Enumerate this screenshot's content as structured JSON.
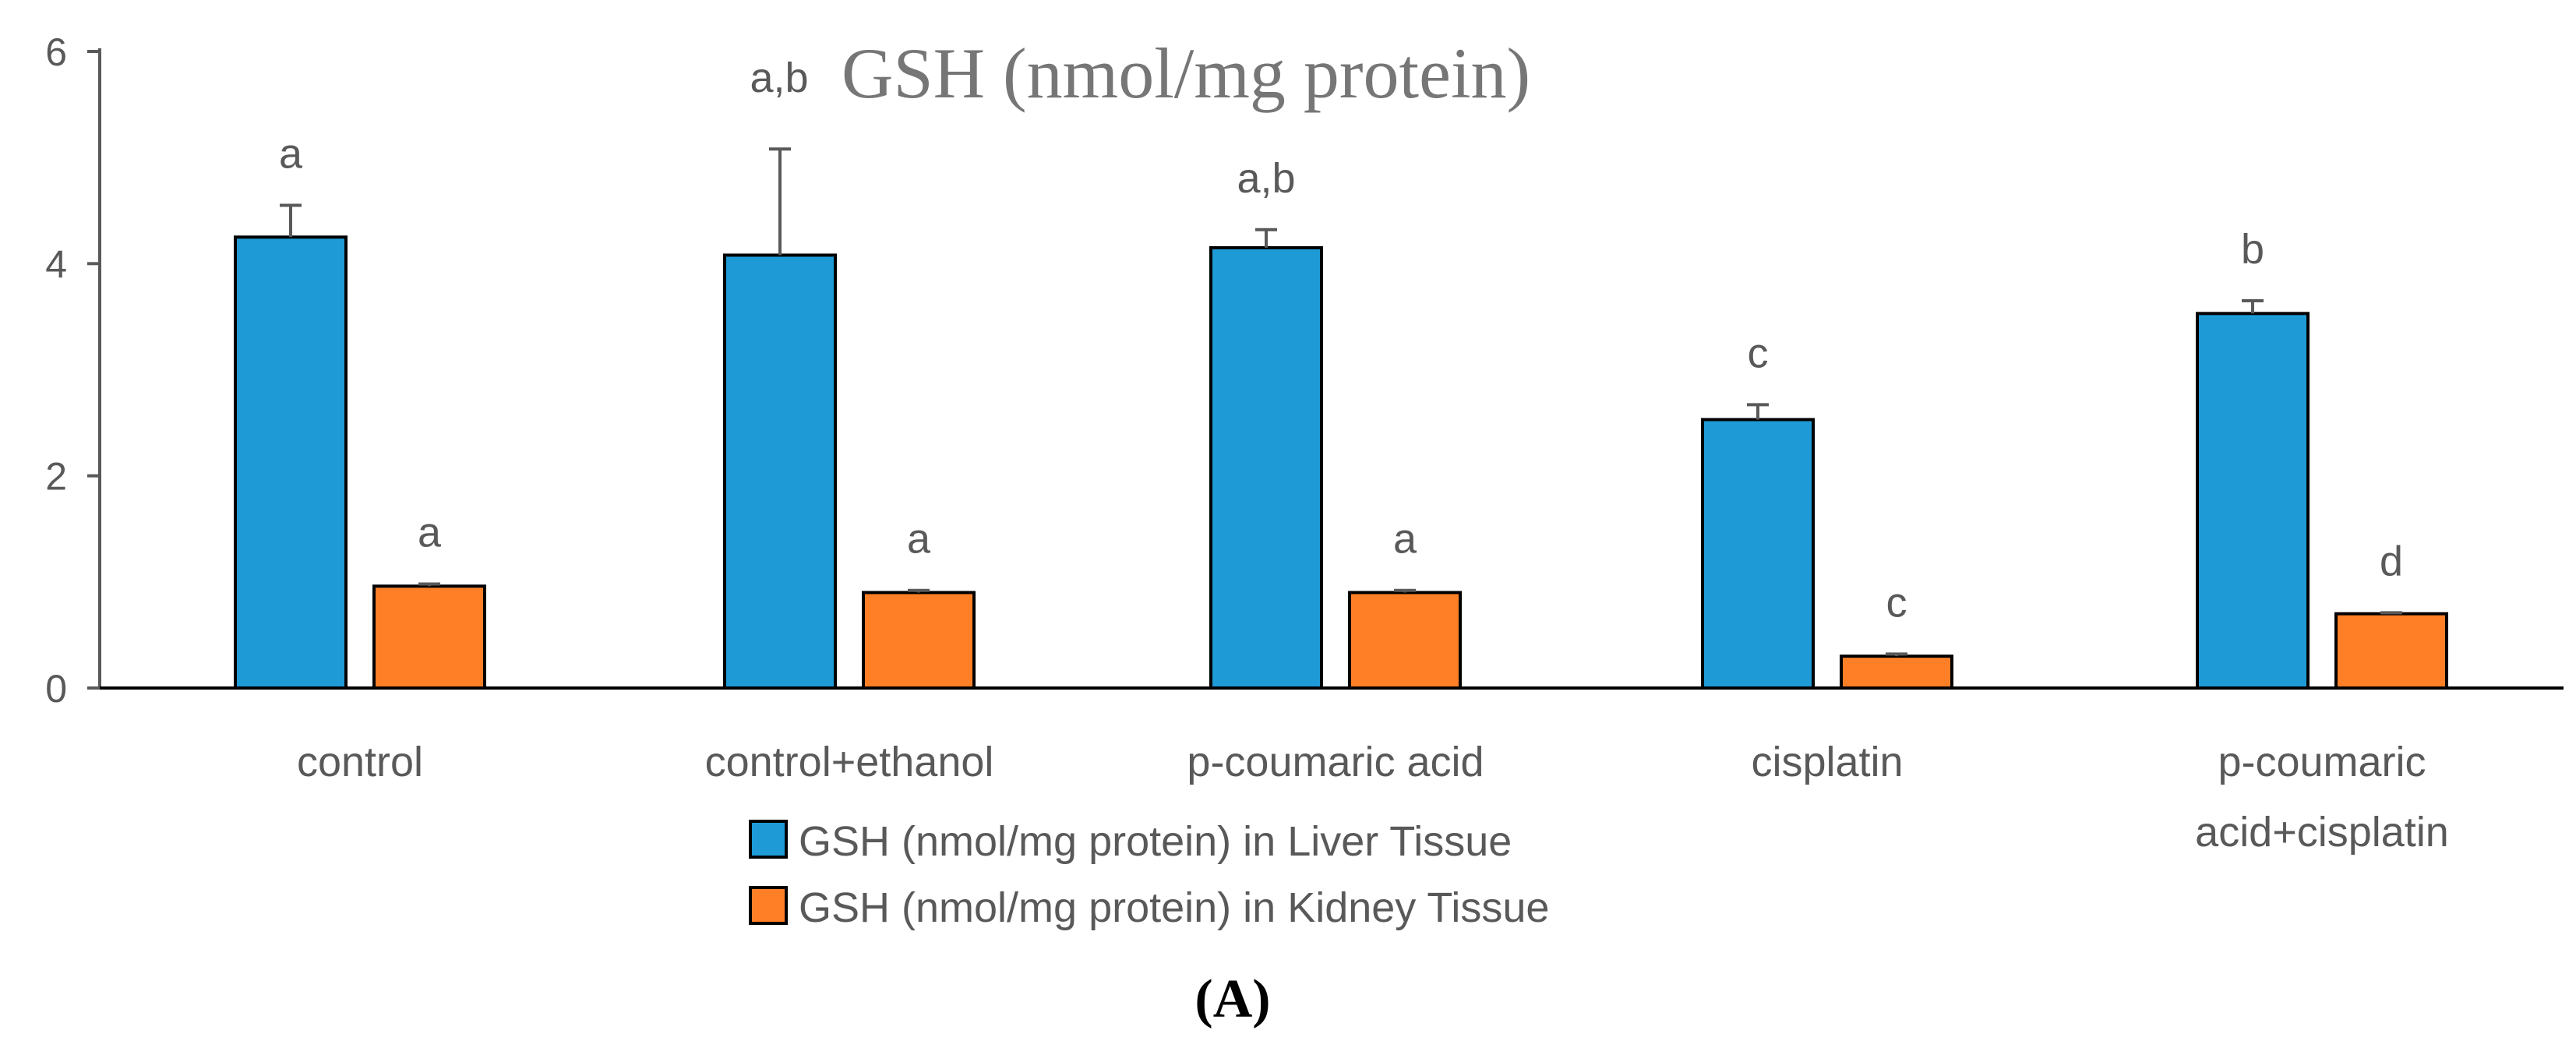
{
  "chart_data": {
    "type": "bar",
    "title": "GSH (nmol/mg protein)",
    "title_prefix": "a,b",
    "caption": "(A)",
    "categories": [
      "control",
      "control+ethanol",
      "p-coumaric acid",
      "cisplatin",
      "p-coumaric acid+cisplatin"
    ],
    "ylim": [
      0,
      6
    ],
    "yticks": [
      0,
      2,
      4,
      6
    ],
    "series": [
      {
        "name": "GSH (nmol/mg protein) in Liver Tissue",
        "color": "#1E9BD7",
        "values": [
          4.25,
          4.08,
          4.15,
          2.53,
          3.53
        ],
        "errors": [
          0.3,
          1.0,
          0.17,
          0.14,
          0.12
        ],
        "labels": [
          "a",
          "",
          "a,b",
          "c",
          "b"
        ]
      },
      {
        "name": "GSH (nmol/mg protein) in Kidney Tissue",
        "color": "#FF7F27",
        "values": [
          0.96,
          0.9,
          0.9,
          0.3,
          0.7
        ],
        "errors": [
          0.02,
          0.02,
          0.02,
          0.02,
          0.01
        ],
        "labels": [
          "a",
          "a",
          "a",
          "c",
          "d"
        ]
      }
    ],
    "legend_position": "bottom-center"
  }
}
